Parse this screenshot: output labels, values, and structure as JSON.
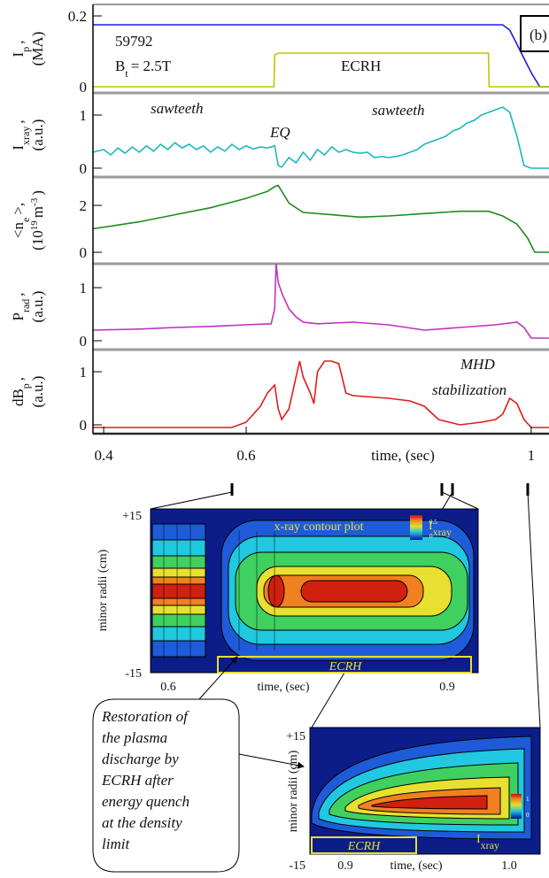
{
  "chart_data": [
    {
      "type": "line",
      "ylabel": [
        [
          "I",
          "p",
          ","
        ],
        [
          "(MA)"
        ]
      ],
      "ylim": [
        -0.0175,
        0.2325
      ],
      "yticks": [
        0,
        0.2
      ],
      "xlim": [
        0.385,
        1.025
      ],
      "annotations": [
        [
          "59792"
        ],
        [
          "B",
          "t",
          "= 2.5T"
        ],
        [
          "ECRH"
        ],
        [
          "(b)"
        ]
      ],
      "series": [
        {
          "name": "Ip",
          "color": "#1c1ce0",
          "x": [
            0.385,
            0.96,
            0.97,
            0.98,
            0.99,
            1.0,
            1.012,
            1.025
          ],
          "values": [
            0.175,
            0.175,
            0.16,
            0.12,
            0.08,
            0.04,
            0.0,
            0.0
          ]
        },
        {
          "name": "ECRH",
          "color": "#c4c400",
          "x": [
            0.385,
            0.639,
            0.64,
            0.645,
            0.94,
            0.941,
            1.025
          ],
          "values": [
            0,
            0,
            0.09,
            0.095,
            0.095,
            0,
            0
          ]
        }
      ]
    },
    {
      "type": "line",
      "ylabel": [
        [
          "I",
          "xray",
          ","
        ],
        [
          "(a.u.)"
        ]
      ],
      "ylim": [
        -0.167,
        1.417
      ],
      "yticks": [
        0,
        1
      ],
      "xlim": [
        0.385,
        1.025
      ],
      "annotations": [
        [
          "sawteeth"
        ],
        [
          "EQ"
        ],
        [
          "sawteeth"
        ]
      ],
      "series": [
        {
          "name": "Ixray",
          "color": "#1cb8c0",
          "x": [
            0.385,
            0.4,
            0.41,
            0.42,
            0.43,
            0.44,
            0.45,
            0.46,
            0.47,
            0.48,
            0.49,
            0.5,
            0.51,
            0.52,
            0.53,
            0.54,
            0.55,
            0.56,
            0.57,
            0.58,
            0.59,
            0.6,
            0.61,
            0.62,
            0.63,
            0.64,
            0.645,
            0.65,
            0.66,
            0.67,
            0.68,
            0.69,
            0.7,
            0.71,
            0.72,
            0.73,
            0.74,
            0.75,
            0.76,
            0.77,
            0.78,
            0.79,
            0.8,
            0.81,
            0.82,
            0.83,
            0.84,
            0.85,
            0.86,
            0.87,
            0.88,
            0.89,
            0.9,
            0.91,
            0.92,
            0.93,
            0.94,
            0.95,
            0.96,
            0.97,
            0.98,
            0.99,
            1.0,
            1.025
          ],
          "values": [
            0.3,
            0.35,
            0.25,
            0.38,
            0.28,
            0.4,
            0.3,
            0.42,
            0.32,
            0.45,
            0.35,
            0.48,
            0.38,
            0.45,
            0.35,
            0.42,
            0.3,
            0.4,
            0.32,
            0.45,
            0.35,
            0.42,
            0.36,
            0.4,
            0.38,
            0.42,
            0.05,
            0.02,
            0.2,
            0.1,
            0.3,
            0.15,
            0.35,
            0.25,
            0.4,
            0.3,
            0.35,
            0.3,
            0.28,
            0.3,
            0.2,
            0.22,
            0.2,
            0.22,
            0.25,
            0.3,
            0.35,
            0.45,
            0.5,
            0.55,
            0.6,
            0.7,
            0.75,
            0.85,
            0.9,
            1.0,
            1.05,
            1.1,
            1.15,
            1.05,
            0.6,
            0.05,
            0.0,
            0.0
          ]
        }
      ]
    },
    {
      "type": "line",
      "ylabel": [
        [
          "<n",
          "e",
          ">,"
        ],
        [
          "(10",
          "19",
          "m",
          "-3",
          ")"
        ]
      ],
      "ylim": [
        -0.49,
        3.21
      ],
      "yticks": [
        0,
        2
      ],
      "xlim": [
        0.385,
        1.025
      ],
      "series": [
        {
          "name": "ne",
          "color": "#1f8a1f",
          "x": [
            0.385,
            0.45,
            0.5,
            0.55,
            0.6,
            0.63,
            0.64,
            0.645,
            0.66,
            0.68,
            0.72,
            0.76,
            0.8,
            0.85,
            0.9,
            0.94,
            0.96,
            0.98,
            0.995,
            1.005,
            1.025
          ],
          "values": [
            1.0,
            1.3,
            1.6,
            1.9,
            2.3,
            2.6,
            2.8,
            2.85,
            2.1,
            1.7,
            1.6,
            1.5,
            1.55,
            1.65,
            1.75,
            1.75,
            1.55,
            1.2,
            0.6,
            0.0,
            0.0
          ]
        }
      ]
    },
    {
      "type": "line",
      "ylabel": [
        [
          "P",
          "rad",
          ","
        ],
        [
          "(a.u.)"
        ]
      ],
      "ylim": [
        -0.167,
        1.45
      ],
      "yticks": [
        0,
        1
      ],
      "xlim": [
        0.385,
        1.025
      ],
      "series": [
        {
          "name": "Prad",
          "color": "#c030c0",
          "x": [
            0.385,
            0.45,
            0.5,
            0.55,
            0.6,
            0.635,
            0.64,
            0.642,
            0.645,
            0.65,
            0.66,
            0.67,
            0.68,
            0.7,
            0.75,
            0.8,
            0.85,
            0.9,
            0.95,
            0.98,
            0.99,
            1.0,
            1.025
          ],
          "values": [
            0.2,
            0.22,
            0.25,
            0.27,
            0.3,
            0.32,
            0.6,
            1.45,
            1.1,
            0.9,
            0.6,
            0.45,
            0.35,
            0.32,
            0.35,
            0.3,
            0.2,
            0.25,
            0.3,
            0.35,
            0.25,
            0.05,
            0.05
          ]
        }
      ]
    },
    {
      "type": "line",
      "ylabel": [
        [
          "dB",
          "p",
          ","
        ],
        [
          "(a.u.)"
        ]
      ],
      "ylim": [
        -0.167,
        1.417
      ],
      "yticks": [
        0,
        1
      ],
      "xlim": [
        0.385,
        1.025
      ],
      "xticks": [
        0.4,
        0.6,
        1.0
      ],
      "xlabel": "time, (sec)",
      "annotations": [
        [
          "MHD"
        ],
        [
          "stabilization"
        ]
      ],
      "series": [
        {
          "name": "dBp",
          "color": "#e01c1c",
          "x": [
            0.385,
            0.5,
            0.58,
            0.6,
            0.61,
            0.62,
            0.63,
            0.64,
            0.645,
            0.65,
            0.66,
            0.67,
            0.675,
            0.68,
            0.69,
            0.695,
            0.7,
            0.71,
            0.72,
            0.73,
            0.74,
            0.75,
            0.8,
            0.83,
            0.85,
            0.87,
            0.9,
            0.93,
            0.95,
            0.96,
            0.97,
            0.98,
            0.99,
            1.0,
            1.025
          ],
          "values": [
            -0.05,
            -0.05,
            -0.05,
            0.05,
            0.2,
            0.35,
            0.6,
            0.75,
            0.3,
            0.1,
            0.3,
            0.9,
            1.2,
            0.9,
            0.6,
            0.4,
            1.0,
            1.2,
            1.2,
            1.15,
            0.6,
            0.55,
            0.5,
            0.45,
            0.35,
            0.1,
            0.0,
            0.05,
            0.1,
            0.2,
            0.5,
            0.4,
            0.1,
            -0.05,
            -0.05
          ]
        }
      ]
    }
  ],
  "contour_plots": [
    {
      "title": "x-ray contour plot",
      "ytick_labels": [
        "+15",
        "-15"
      ],
      "ylabel": "minor radii (cm)",
      "xtick_labels": [
        "0.6",
        "0.9"
      ],
      "xlabel": "time, (sec)",
      "band_label": "ECRH",
      "colorbar_label": [
        "I",
        "xray"
      ],
      "colorbar_ticks": [
        "0.5",
        "0"
      ]
    },
    {
      "ytick_labels": [
        "+15",
        "-15"
      ],
      "ylabel": "minor radii (cm)",
      "xtick_labels": [
        "0.9",
        "1.0"
      ],
      "xlabel": "time, (sec)",
      "band_label": "ECRH",
      "colorbar_label": [
        "I",
        "xray"
      ],
      "colorbar_ticks": [
        "1",
        "0"
      ]
    }
  ],
  "callout": {
    "lines": [
      "Restoration of",
      "the plasma",
      "discharge by",
      "ECRH after",
      "energy quench",
      "at the density",
      "limit"
    ]
  }
}
